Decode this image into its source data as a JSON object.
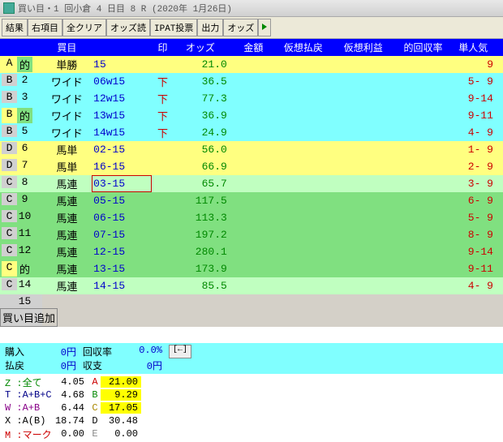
{
  "title": "買い目・1 回小倉 4 日目 8 R (2020年 1月26日)",
  "toolbar": [
    "結果",
    "右項目",
    "全クリア",
    "オッズ読",
    "IPAT投票",
    "出力",
    "オッズ"
  ],
  "headers": [
    "",
    "買目",
    "印",
    "オッズ",
    "金額",
    "仮想払戻",
    "仮想利益",
    "的回収率",
    "単人気"
  ],
  "rows": [
    {
      "m1": "A",
      "m2": "的",
      "bg": "bg-yellow",
      "mbg1": "bg-yellow",
      "mbg2": "bg-green",
      "type": "単勝",
      "combo": "15",
      "stamp": "",
      "odds": "21.0",
      "pop": "9"
    },
    {
      "m1": "B",
      "m2": "2",
      "bg": "bg-cyan",
      "mbg1": "bg-gray",
      "mbg2": "bg-cyan",
      "type": "ワイド",
      "combo": "06w15",
      "stamp": "下",
      "odds": "36.5",
      "pop": "5- 9"
    },
    {
      "m1": "B",
      "m2": "3",
      "bg": "bg-cyan",
      "mbg1": "bg-gray",
      "mbg2": "bg-cyan",
      "type": "ワイド",
      "combo": "12w15",
      "stamp": "下",
      "odds": "77.3",
      "pop": "9-14"
    },
    {
      "m1": "B",
      "m2": "的",
      "bg": "bg-cyan",
      "mbg1": "bg-yellow",
      "mbg2": "bg-green",
      "type": "ワイド",
      "combo": "13w15",
      "stamp": "下",
      "odds": "36.9",
      "pop": "9-11"
    },
    {
      "m1": "B",
      "m2": "5",
      "bg": "bg-cyan",
      "mbg1": "bg-gray",
      "mbg2": "bg-cyan",
      "type": "ワイド",
      "combo": "14w15",
      "stamp": "下",
      "odds": "24.9",
      "pop": "4- 9"
    },
    {
      "m1": "D",
      "m2": "6",
      "bg": "bg-yellow",
      "mbg1": "bg-gray",
      "mbg2": "bg-yellow",
      "type": "馬単",
      "combo": "02-15",
      "stamp": "",
      "odds": "56.0",
      "pop": "1- 9"
    },
    {
      "m1": "D",
      "m2": "7",
      "bg": "bg-yellow",
      "mbg1": "bg-gray",
      "mbg2": "bg-yellow",
      "type": "馬単",
      "combo": "16-15",
      "stamp": "",
      "odds": "66.9",
      "pop": "2- 9"
    },
    {
      "m1": "C",
      "m2": "8",
      "bg": "bg-lgreen",
      "mbg1": "bg-gray",
      "mbg2": "bg-lgreen",
      "type": "馬連",
      "combo": "03-15",
      "stamp": "",
      "odds": "65.7",
      "pop": "3- 9",
      "boxed": true
    },
    {
      "m1": "C",
      "m2": "9",
      "bg": "bg-green",
      "mbg1": "bg-gray",
      "mbg2": "bg-green",
      "type": "馬連",
      "combo": "05-15",
      "stamp": "",
      "odds": "117.5",
      "pop": "6- 9"
    },
    {
      "m1": "C",
      "m2": "10",
      "bg": "bg-green",
      "mbg1": "bg-gray",
      "mbg2": "bg-green",
      "type": "馬連",
      "combo": "06-15",
      "stamp": "",
      "odds": "113.3",
      "pop": "5- 9"
    },
    {
      "m1": "C",
      "m2": "11",
      "bg": "bg-green",
      "mbg1": "bg-gray",
      "mbg2": "bg-green",
      "type": "馬連",
      "combo": "07-15",
      "stamp": "",
      "odds": "197.2",
      "pop": "8- 9"
    },
    {
      "m1": "C",
      "m2": "12",
      "bg": "bg-green",
      "mbg1": "bg-gray",
      "mbg2": "bg-green",
      "type": "馬連",
      "combo": "12-15",
      "stamp": "",
      "odds": "280.1",
      "pop": "9-14"
    },
    {
      "m1": "C",
      "m2": "的",
      "bg": "bg-green",
      "mbg1": "bg-yellow",
      "mbg2": "bg-green",
      "type": "馬連",
      "combo": "13-15",
      "stamp": "",
      "odds": "173.9",
      "pop": "9-11"
    },
    {
      "m1": "C",
      "m2": "14",
      "bg": "bg-lgreen",
      "mbg1": "bg-gray",
      "mbg2": "bg-lgreen",
      "type": "馬連",
      "combo": "14-15",
      "stamp": "",
      "odds": "85.5",
      "pop": "4- 9"
    },
    {
      "m1": "",
      "m2": "15",
      "bg": "bg-gray",
      "mbg1": "bg-gray",
      "mbg2": "bg-gray",
      "type": "",
      "combo": "買い目追加",
      "stamp": "",
      "odds": "",
      "pop": "",
      "addrow": true
    }
  ],
  "summary": {
    "buy_lbl": "購入",
    "buy_val": "0円",
    "rate_lbl": "回収率",
    "rate_val": "0.0%",
    "pay_lbl": "払戻",
    "pay_val": "0円",
    "bal_lbl": "収支",
    "bal_val": "0円",
    "back": "[←]"
  },
  "stats": [
    {
      "cls": "z",
      "lbl": "Z :全て",
      "val": "4.05",
      "g": "A",
      "gcls": "gA",
      "gval": "21.00",
      "hl": true
    },
    {
      "cls": "t",
      "lbl": "T :A+B+C",
      "val": "4.68",
      "g": "B",
      "gcls": "gB",
      "gval": "9.29",
      "hl": true
    },
    {
      "cls": "w",
      "lbl": "W :A+B",
      "val": "6.44",
      "g": "C",
      "gcls": "gC",
      "gval": "17.05",
      "hl": true
    },
    {
      "cls": "x",
      "lbl": "X :A(B)",
      "val": "18.74",
      "g": "D",
      "gcls": "gD",
      "gval": "30.48",
      "hl": false
    },
    {
      "cls": "m",
      "lbl": "M :マーク",
      "val": "0.00",
      "g": "E",
      "gcls": "gE",
      "gval": "0.00",
      "hl": false
    }
  ]
}
